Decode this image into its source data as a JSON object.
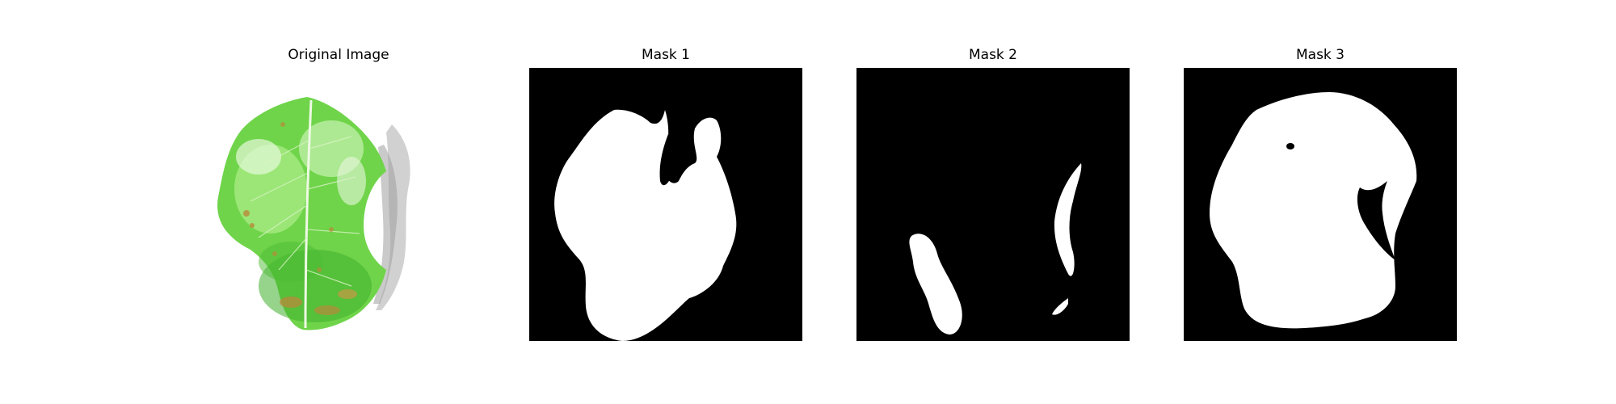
{
  "panels": [
    {
      "title": "Original Image"
    },
    {
      "title": "Mask 1"
    },
    {
      "title": "Mask 2"
    },
    {
      "title": "Mask 3"
    }
  ],
  "colors": {
    "background": "#ffffff",
    "mask_background": "#000000",
    "mask_foreground": "#ffffff",
    "leaf_light": "#8fe36a",
    "leaf_mid": "#5fcf3a",
    "leaf_dark": "#3da82a",
    "leaf_vein": "#e8f7d8",
    "lesion": "#b88a3a",
    "shadow": "#c9c9c9"
  }
}
